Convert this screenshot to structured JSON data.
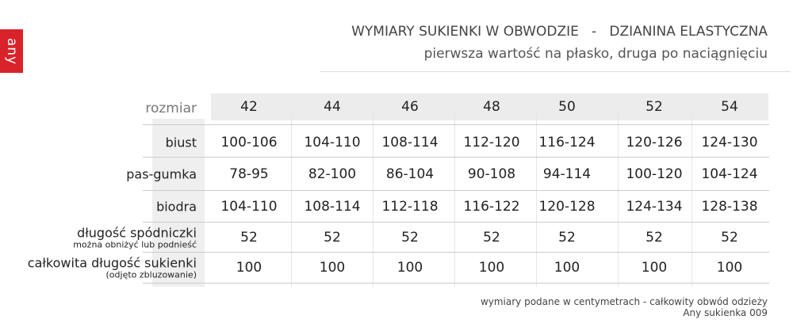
{
  "logo": "any",
  "title": "WYMIARY SUKIENKI W OBWODZIE   -   DZIANINA ELASTYCZNA",
  "subtitle": "pierwsza wartość na płasko, druga po naciągnięciu",
  "table": {
    "size_label": "rozmiar",
    "sizes": [
      "42",
      "44",
      "46",
      "48",
      "50",
      "52",
      "54"
    ],
    "rows": [
      {
        "label": "biust",
        "note": "",
        "values": [
          "100-106",
          "104-110",
          "108-114",
          "112-120",
          "116-124",
          "120-126",
          "124-130"
        ]
      },
      {
        "label": "pas-gumka",
        "note": "",
        "values": [
          "78-95",
          "82-100",
          "86-104",
          "90-108",
          "94-114",
          "100-120",
          "104-124"
        ]
      },
      {
        "label": "biodra",
        "note": "",
        "values": [
          "104-110",
          "108-114",
          "112-118",
          "116-122",
          "120-128",
          "124-134",
          "128-138"
        ]
      },
      {
        "label": "długość spódniczki",
        "note": "można obniżyć lub podnieść",
        "values": [
          "52",
          "52",
          "52",
          "52",
          "52",
          "52",
          "52"
        ]
      },
      {
        "label": "całkowita długość sukienki",
        "note": "(odjęto zbluzowanie)",
        "values": [
          "100",
          "100",
          "100",
          "100",
          "100",
          "100",
          "100"
        ]
      }
    ]
  },
  "footer": {
    "line1": "wymiary podane w centymetrach - całkowity obwód odzieży",
    "line2": "Any sukienka 009"
  }
}
